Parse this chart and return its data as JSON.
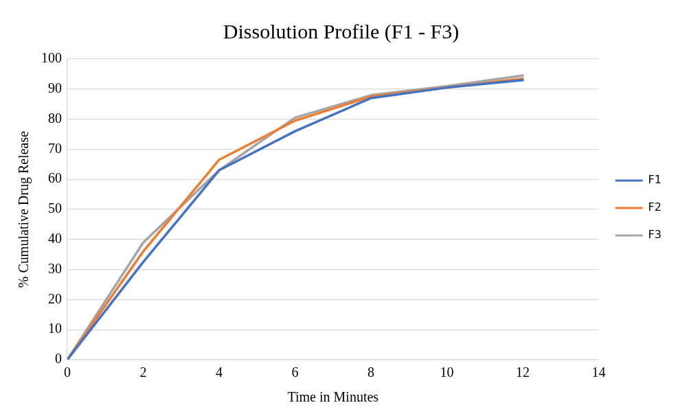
{
  "chart_data": {
    "type": "line",
    "title": "Dissolution Profile (F1 - F3)",
    "xlabel": "Time in Minutes",
    "ylabel": "% Cumulative Drug Release",
    "x": [
      0,
      2,
      4,
      6,
      8,
      10,
      12
    ],
    "series": [
      {
        "name": "F1",
        "color": "#4472c4",
        "values": [
          0,
          32.5,
          63,
          76,
          87,
          90.5,
          93
        ]
      },
      {
        "name": "F2",
        "color": "#ed7d31",
        "values": [
          0,
          36,
          66.5,
          79.5,
          87.5,
          90.5,
          93.5
        ]
      },
      {
        "name": "F3",
        "color": "#a5a5a5",
        "values": [
          0,
          39,
          63,
          80.5,
          88,
          91,
          94.5
        ]
      }
    ],
    "xlim": [
      0,
      14
    ],
    "xticks": [
      0,
      2,
      4,
      6,
      8,
      10,
      12,
      14
    ],
    "ylim": [
      0,
      100
    ],
    "yticks": [
      0,
      10,
      20,
      30,
      40,
      50,
      60,
      70,
      80,
      90,
      100
    ],
    "grid": "y",
    "legend": "right",
    "marker": "none",
    "line_style": "solid"
  }
}
